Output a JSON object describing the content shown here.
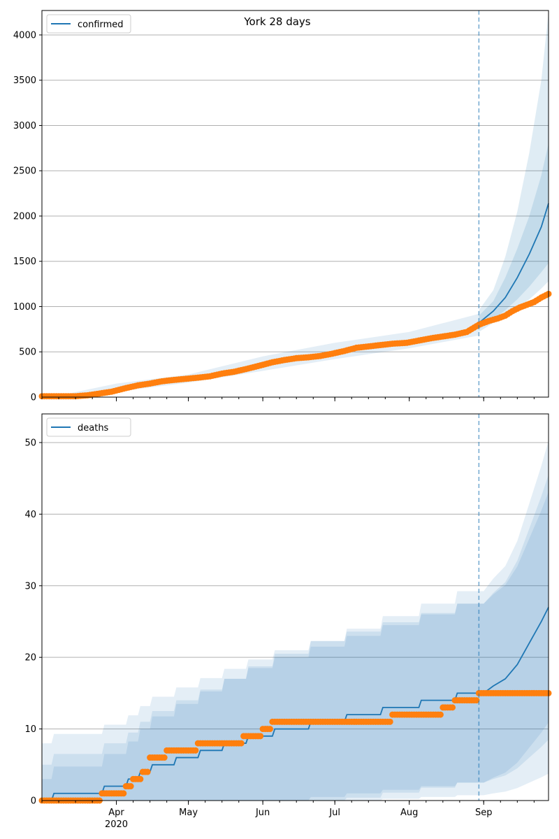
{
  "chart_data": [
    {
      "type": "line",
      "title": "York 28 days",
      "legend": [
        "confirmed"
      ],
      "legend_position": "upper-left",
      "grid": "y",
      "ylim": [
        0,
        4270
      ],
      "yticks": [
        0,
        500,
        1000,
        1500,
        2000,
        2500,
        3000,
        3500,
        4000
      ],
      "vline_date": "2020-08-30",
      "colors": {
        "model": "#1f77b4",
        "observed": "#ff7f0e",
        "band": "#1f77b4"
      },
      "model": {
        "name": "confirmed",
        "x": [
          "2020-08-30",
          "2020-09-05",
          "2020-09-10",
          "2020-09-15",
          "2020-09-20",
          "2020-09-25",
          "2020-09-28"
        ],
        "y": [
          820,
          950,
          1100,
          1320,
          1580,
          1880,
          2140
        ],
        "bands": [
          {
            "lower": [
              750,
              860,
              960,
              1080,
              1220,
              1380,
              1480
            ],
            "upper": [
              900,
              1060,
              1320,
              1640,
              2000,
              2450,
              2800
            ]
          },
          {
            "lower": [
              720,
              820,
              900,
              990,
              1080,
              1200,
              1280
            ],
            "upper": [
              960,
              1180,
              1550,
              2050,
              2700,
              3500,
              4250
            ]
          }
        ],
        "history_band": {
          "x": [
            "2020-03-05",
            "2020-04-01",
            "2020-05-01",
            "2020-06-01",
            "2020-07-01",
            "2020-08-01",
            "2020-08-30"
          ],
          "lower": [
            0,
            60,
            160,
            290,
            420,
            540,
            680
          ],
          "upper": [
            0,
            150,
            250,
            450,
            600,
            720,
            920
          ]
        }
      },
      "observed": {
        "x": [
          "2020-03-01",
          "2020-03-15",
          "2020-03-20",
          "2020-03-25",
          "2020-03-30",
          "2020-04-05",
          "2020-04-10",
          "2020-04-15",
          "2020-04-20",
          "2020-04-25",
          "2020-05-01",
          "2020-05-05",
          "2020-05-10",
          "2020-05-15",
          "2020-05-20",
          "2020-05-25",
          "2020-05-31",
          "2020-06-05",
          "2020-06-10",
          "2020-06-15",
          "2020-06-20",
          "2020-06-25",
          "2020-06-30",
          "2020-07-05",
          "2020-07-10",
          "2020-07-15",
          "2020-07-20",
          "2020-07-25",
          "2020-07-31",
          "2020-08-05",
          "2020-08-10",
          "2020-08-15",
          "2020-08-20",
          "2020-08-25",
          "2020-08-30",
          "2020-09-03",
          "2020-09-07",
          "2020-09-10",
          "2020-09-13",
          "2020-09-16",
          "2020-09-19",
          "2020-09-22",
          "2020-09-25",
          "2020-09-28"
        ],
        "y": [
          10,
          10,
          20,
          40,
          60,
          100,
          130,
          150,
          175,
          190,
          205,
          215,
          230,
          260,
          280,
          310,
          350,
          385,
          410,
          430,
          440,
          455,
          480,
          510,
          545,
          560,
          575,
          590,
          600,
          625,
          650,
          670,
          690,
          720,
          800,
          840,
          870,
          900,
          950,
          990,
          1020,
          1050,
          1100,
          1140
        ]
      }
    },
    {
      "type": "line",
      "title": "",
      "legend": [
        "deaths"
      ],
      "legend_position": "upper-left",
      "grid": "y",
      "ylim": [
        0,
        54
      ],
      "yticks": [
        0,
        10,
        20,
        30,
        40,
        50
      ],
      "vline_date": "2020-08-30",
      "xticks": [
        "Apr\n2020",
        "May",
        "Jun",
        "Jul",
        "Aug",
        "Sep"
      ],
      "xlim": [
        "2020-03-01",
        "2020-09-28"
      ],
      "colors": {
        "model": "#1f77b4",
        "observed": "#ff7f0e",
        "band": "#1f77b4"
      },
      "model": {
        "name": "deaths",
        "x": [
          "2020-03-01",
          "2020-03-05",
          "2020-03-06",
          "2020-03-26",
          "2020-03-27",
          "2020-04-05",
          "2020-04-06",
          "2020-04-10",
          "2020-04-11",
          "2020-04-15",
          "2020-04-16",
          "2020-04-25",
          "2020-04-26",
          "2020-05-05",
          "2020-05-06",
          "2020-05-15",
          "2020-05-16",
          "2020-05-25",
          "2020-05-26",
          "2020-06-05",
          "2020-06-06",
          "2020-06-20",
          "2020-06-21",
          "2020-07-05",
          "2020-07-06",
          "2020-07-20",
          "2020-07-21",
          "2020-08-05",
          "2020-08-06",
          "2020-08-20",
          "2020-08-21",
          "2020-08-30",
          "2020-09-01",
          "2020-09-05",
          "2020-09-10",
          "2020-09-15",
          "2020-09-20",
          "2020-09-25",
          "2020-09-28"
        ],
        "y": [
          0,
          0,
          1,
          1,
          2,
          2,
          3,
          3,
          4,
          4,
          5,
          5,
          6,
          6,
          7,
          7,
          8,
          8,
          9,
          9,
          10,
          10,
          11,
          11,
          12,
          12,
          13,
          13,
          14,
          14,
          15,
          15,
          15,
          16,
          17,
          19,
          22,
          25,
          27
        ]
      },
      "observed": {
        "x": [
          "2020-03-01",
          "2020-03-10",
          "2020-03-20",
          "2020-03-26",
          "2020-03-29",
          "2020-04-01",
          "2020-04-05",
          "2020-04-08",
          "2020-04-12",
          "2020-04-15",
          "2020-04-18",
          "2020-04-22",
          "2020-04-26",
          "2020-05-01",
          "2020-05-05",
          "2020-05-10",
          "2020-05-15",
          "2020-05-20",
          "2020-05-24",
          "2020-05-28",
          "2020-06-01",
          "2020-06-05",
          "2020-06-10",
          "2020-06-15",
          "2020-06-20",
          "2020-06-25",
          "2020-07-01",
          "2020-07-05",
          "2020-07-10",
          "2020-07-15",
          "2020-07-20",
          "2020-07-25",
          "2020-08-01",
          "2020-08-05",
          "2020-08-10",
          "2020-08-15",
          "2020-08-20",
          "2020-08-25",
          "2020-08-30",
          "2020-09-05",
          "2020-09-10",
          "2020-09-15",
          "2020-09-20",
          "2020-09-25",
          "2020-09-28"
        ],
        "y": [
          0,
          0,
          0,
          1,
          1,
          1,
          2,
          3,
          4,
          6,
          6,
          7,
          7,
          7,
          8,
          8,
          8,
          8,
          9,
          9,
          10,
          11,
          11,
          11,
          11,
          11,
          11,
          11,
          11,
          11,
          11,
          12,
          12,
          12,
          12,
          13,
          14,
          14,
          15,
          15,
          15,
          15,
          15,
          15,
          15
        ]
      }
    }
  ]
}
